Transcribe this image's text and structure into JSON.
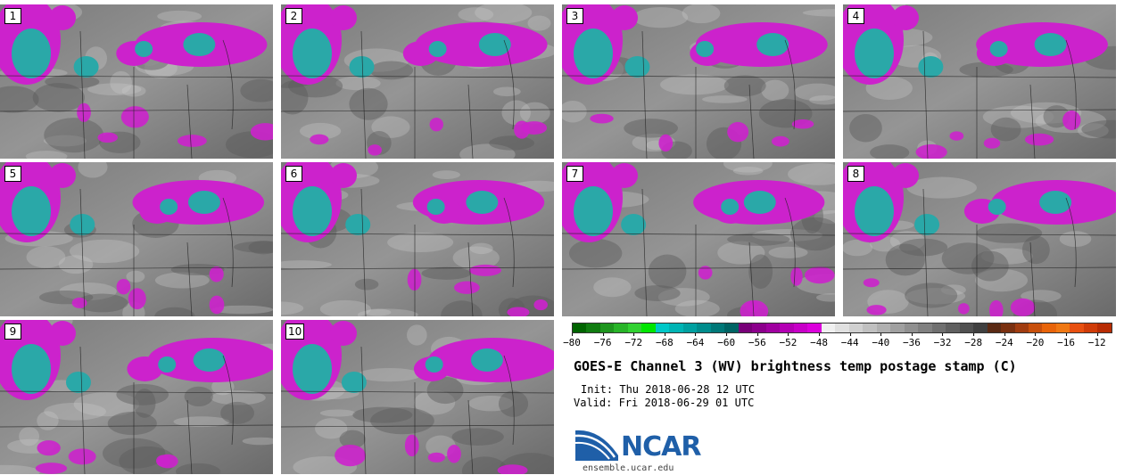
{
  "panels": [
    "1",
    "2",
    "3",
    "4",
    "5",
    "6",
    "7",
    "8",
    "9",
    "10"
  ],
  "colorbar": {
    "colors": [
      "#006400",
      "#107c10",
      "#1e961e",
      "#28b428",
      "#32d232",
      "#00e600",
      "#00c8c8",
      "#00b4b4",
      "#00a0a0",
      "#008c8c",
      "#007878",
      "#006464",
      "#780078",
      "#8c008c",
      "#a000a0",
      "#b400b4",
      "#c800c8",
      "#dc00dc",
      "#f0f0f0",
      "#e0e0e0",
      "#d0d0d0",
      "#c0c0c0",
      "#b0b0b0",
      "#a0a0a0",
      "#909090",
      "#808080",
      "#707070",
      "#606060",
      "#505050",
      "#404040",
      "#5a2a14",
      "#7a3010",
      "#a03c10",
      "#c8500c",
      "#e8640a",
      "#f07814",
      "#e85010",
      "#d03c08",
      "#b82c04"
    ],
    "ticks": [
      "−80",
      "−76",
      "−72",
      "−68",
      "−64",
      "−60",
      "−56",
      "−52",
      "−48",
      "−44",
      "−40",
      "−36",
      "−32",
      "−28",
      "−24",
      "−20",
      "−16",
      "−12"
    ],
    "min": -80,
    "max": -10
  },
  "title": "GOES-E Channel 3 (WV) brightness temp postage stamp (C)",
  "init": "Init: Thu 2018-06-28 12 UTC",
  "valid": "Valid: Fri 2018-06-29 01 UTC",
  "logo_text": "NCAR",
  "site": "ensemble.ucar.edu",
  "colors": {
    "magenta": "#cc22cc",
    "teal": "#2aa8a8",
    "gray_bg": "#8a8a8a"
  }
}
